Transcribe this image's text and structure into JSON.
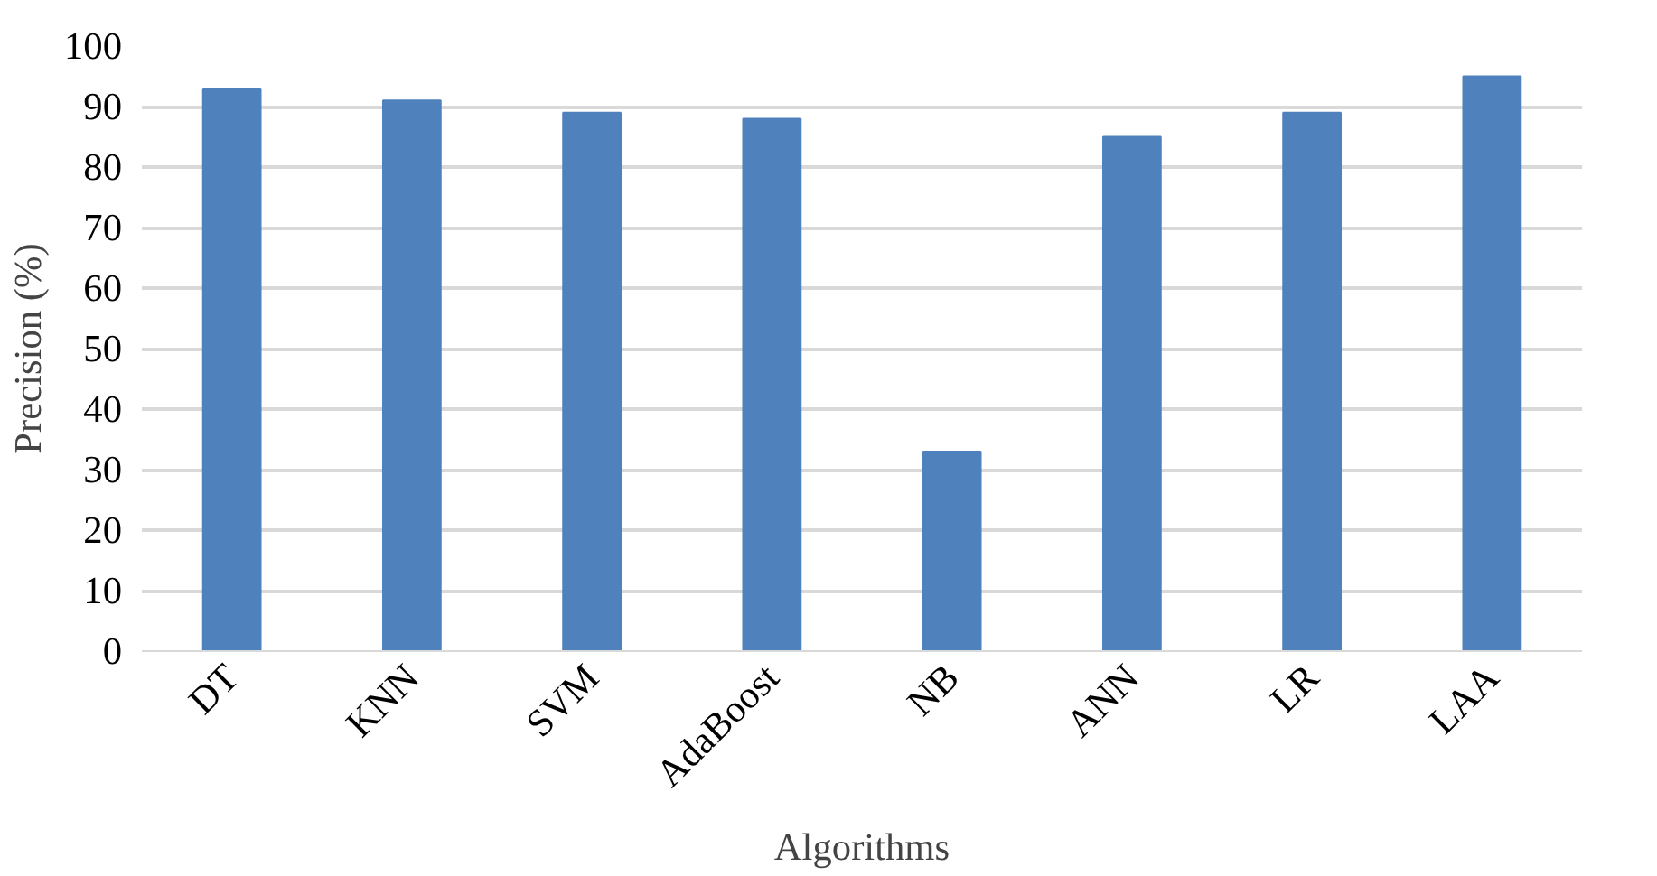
{
  "chart_data": {
    "type": "bar",
    "xlabel": "Algorithms",
    "ylabel": "Precision (%)",
    "categories": [
      "DT",
      "KNN",
      "SVM",
      "AdaBoost",
      "NB",
      "ANN",
      "LR",
      "LAA"
    ],
    "values": [
      93,
      91,
      89,
      88,
      33,
      85,
      89,
      95
    ],
    "color": "#4f81bd",
    "ylim": [
      0,
      100
    ],
    "yticks": [
      0,
      10,
      20,
      30,
      40,
      50,
      60,
      70,
      80,
      90,
      100
    ],
    "grid": "y"
  }
}
